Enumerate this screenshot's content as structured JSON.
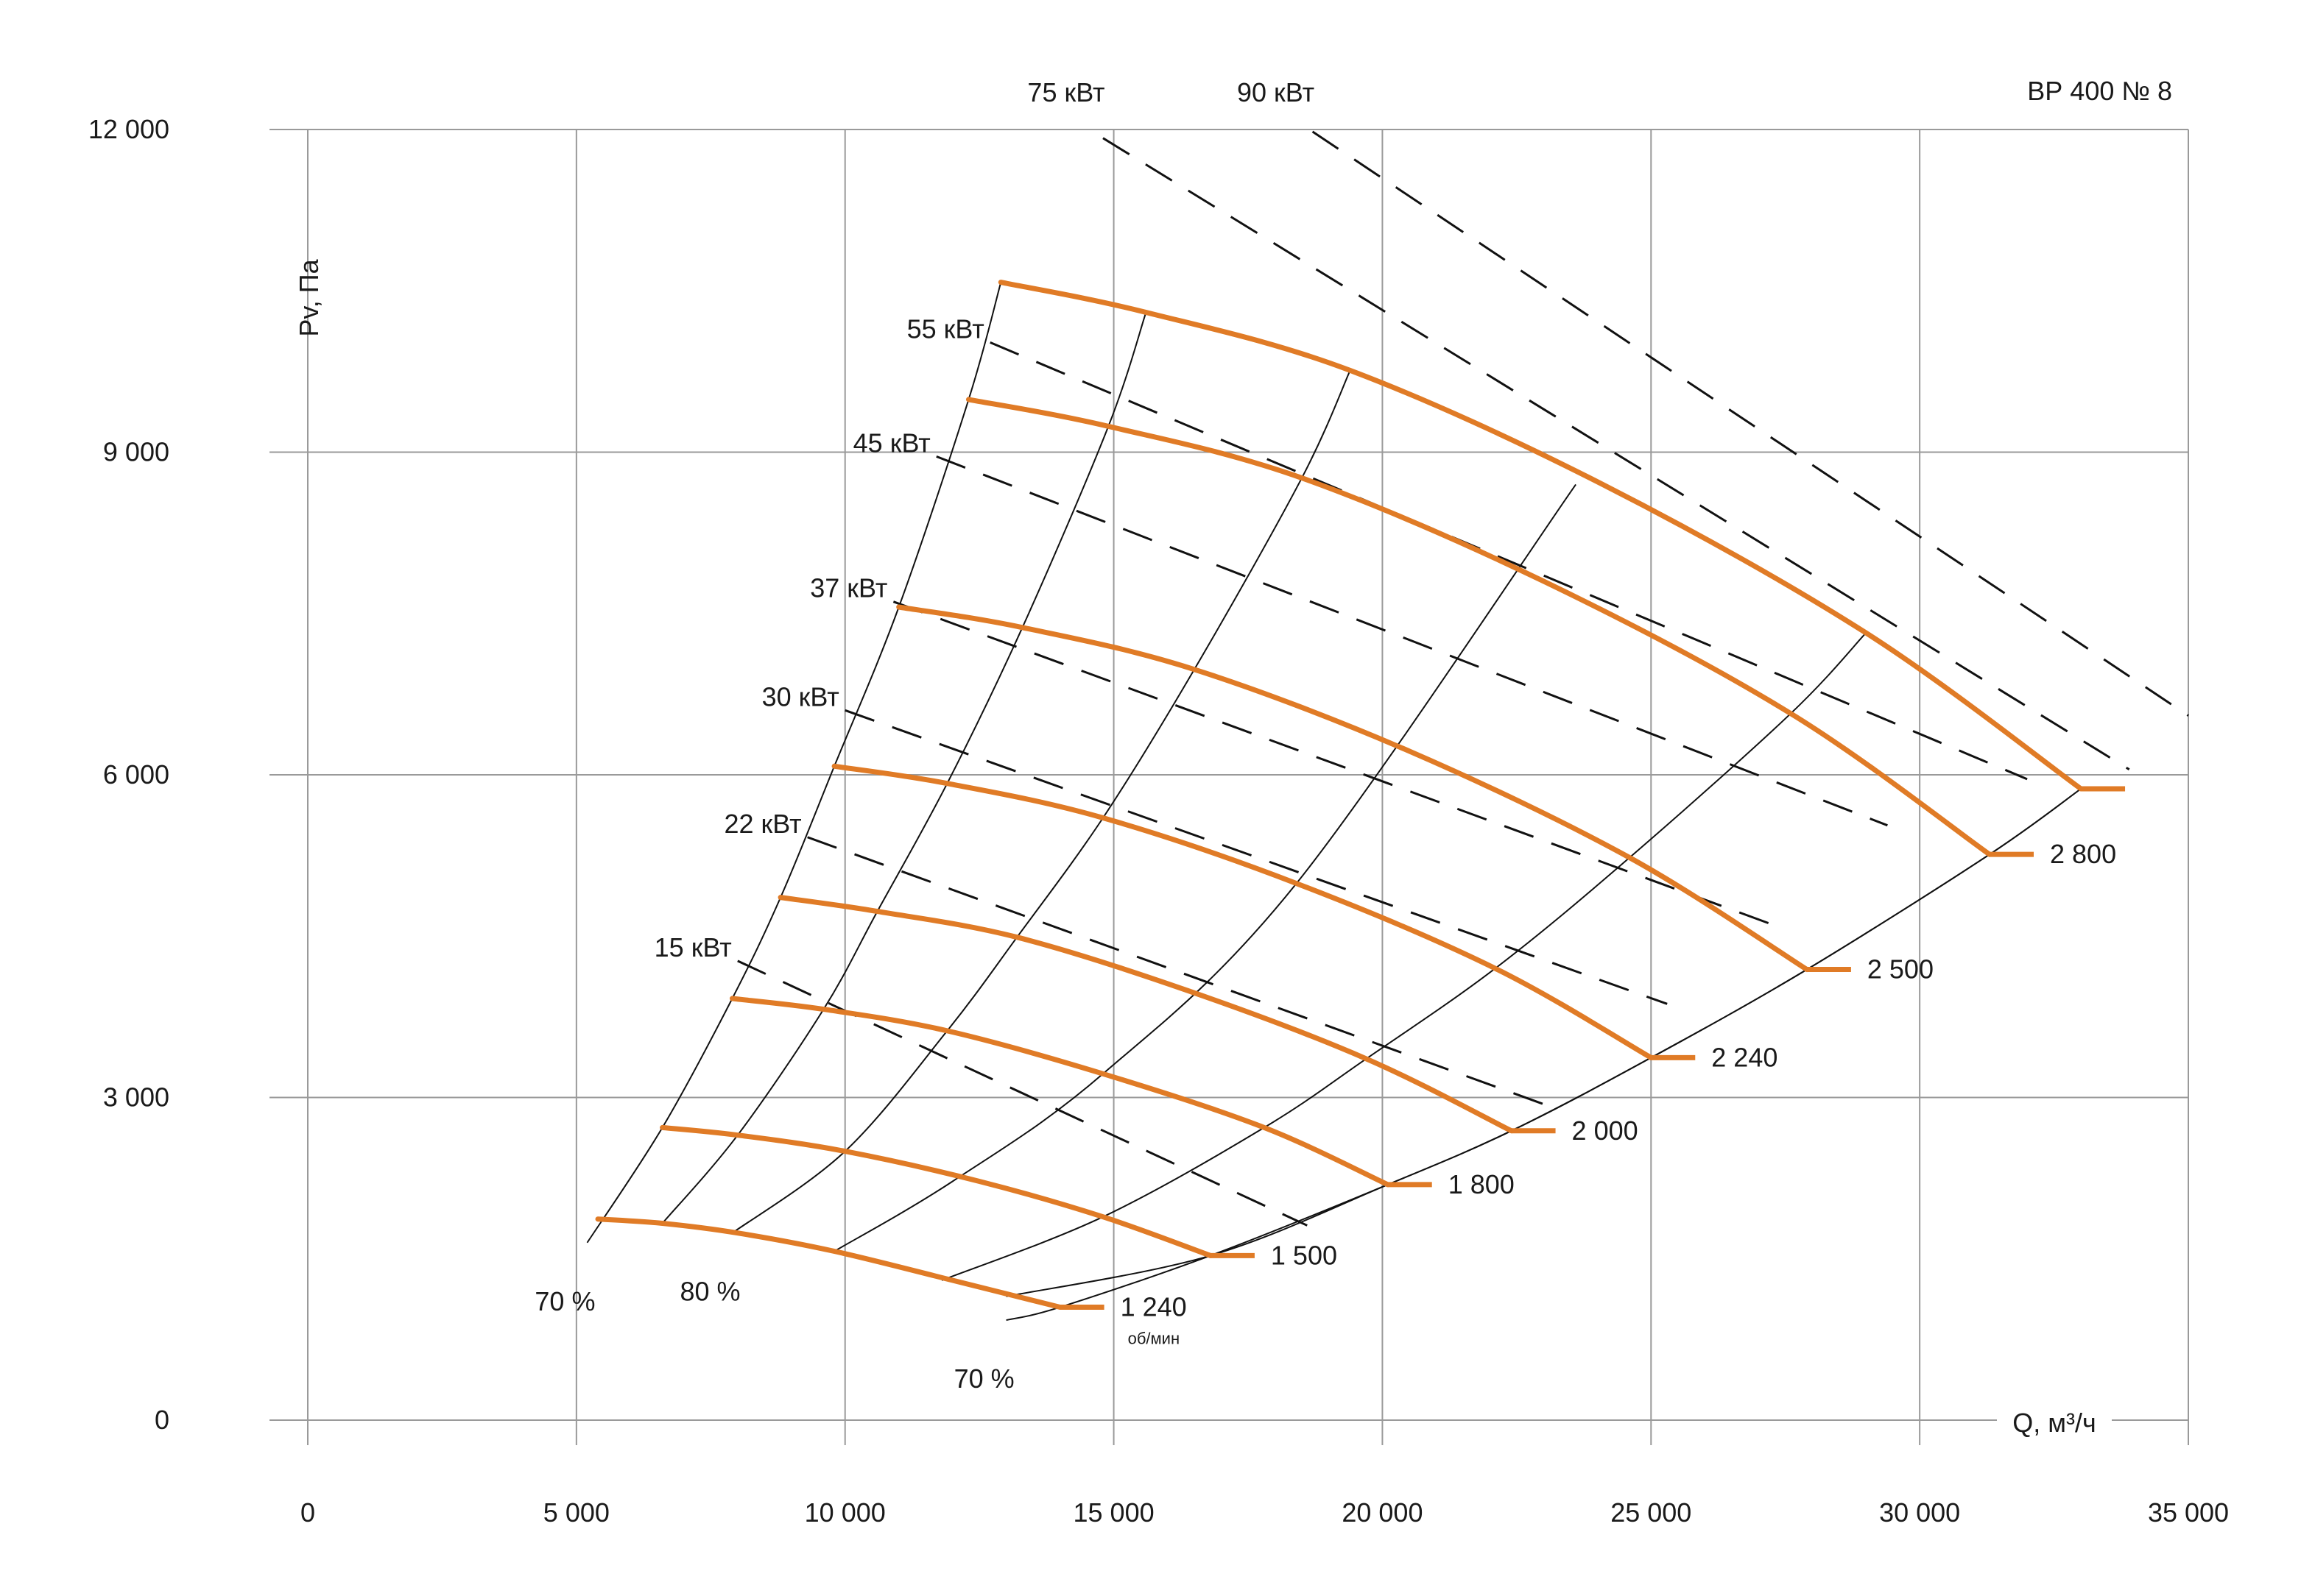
{
  "chart_data": {
    "type": "line",
    "title": "ВР 400 № 8",
    "xlabel": "Q, м³/ч",
    "ylabel": "Pv, Па",
    "xlim": [
      0,
      35000
    ],
    "ylim": [
      0,
      12000
    ],
    "x_ticks": [
      0,
      5000,
      10000,
      15000,
      20000,
      25000,
      30000,
      35000
    ],
    "x_tick_labels": [
      "0",
      "5 000",
      "10 000",
      "15 000",
      "20 000",
      "25 000",
      "30 000",
      "35 000"
    ],
    "y_ticks": [
      0,
      3000,
      6000,
      9000,
      12000
    ],
    "y_tick_labels": [
      "0",
      "3 000",
      "6 000",
      "9 000",
      "12 000"
    ],
    "grid": true,
    "colors": {
      "speed_curve": "#e07b26",
      "efficiency_line": "#111111",
      "power_line": "#111111",
      "grid": "#9a9a9a"
    },
    "speed_unit": "об/мин",
    "speed_curves": [
      {
        "name": "1 240",
        "x": [
          5400,
          6600,
          8000,
          9800,
          12000,
          14000
        ],
        "y": [
          1870,
          1830,
          1740,
          1570,
          1300,
          1050
        ]
      },
      {
        "name": "1 500",
        "x": [
          6600,
          8000,
          10000,
          12500,
          14800,
          16800
        ],
        "y": [
          2720,
          2650,
          2500,
          2220,
          1890,
          1530
        ]
      },
      {
        "name": "1 800",
        "x": [
          7900,
          9600,
          11900,
          14800,
          17800,
          20100
        ],
        "y": [
          3920,
          3820,
          3620,
          3220,
          2720,
          2190
        ]
      },
      {
        "name": "2 000",
        "x": [
          8800,
          10600,
          13200,
          16400,
          19700,
          22400
        ],
        "y": [
          4860,
          4730,
          4490,
          3990,
          3360,
          2690
        ]
      },
      {
        "name": "2 240",
        "x": [
          9800,
          11900,
          14800,
          18400,
          22100,
          25000
        ],
        "y": [
          6080,
          5920,
          5600,
          4990,
          4200,
          3370
        ]
      },
      {
        "name": "2 500",
        "x": [
          11000,
          13300,
          16500,
          20500,
          24600,
          27900
        ],
        "y": [
          7560,
          7370,
          6980,
          6220,
          5230,
          4190
        ]
      },
      {
        "name": "2 800",
        "x": [
          12300,
          14900,
          18500,
          23000,
          27600,
          31300
        ],
        "y": [
          9490,
          9240,
          8760,
          7800,
          6570,
          5260
        ]
      },
      {
        "name": "",
        "x": [
          12900,
          15600,
          19400,
          24100,
          29000,
          33000
        ],
        "y": [
          10580,
          10300,
          9760,
          8700,
          7320,
          5870
        ]
      }
    ],
    "efficiency_lines": [
      {
        "label": "70 %",
        "x": [
          5200,
          6600,
          7900,
          8800,
          9800,
          11000,
          12300,
          12900
        ],
        "y": [
          1650,
          2720,
          3920,
          4860,
          6080,
          7560,
          9490,
          10580
        ]
      },
      {
        "name": "",
        "x": [
          6600,
          8000,
          9600,
          10600,
          11900,
          13300,
          14900,
          15600
        ],
        "y": [
          1830,
          2650,
          3820,
          4730,
          5920,
          7370,
          9240,
          10300
        ]
      },
      {
        "label": "80 %",
        "x": [
          7900,
          10000,
          11900,
          13200,
          14800,
          16500,
          18500,
          19400
        ],
        "y": [
          1740,
          2500,
          3620,
          4490,
          5600,
          6980,
          8760,
          9760
        ]
      },
      {
        "name": "",
        "x": [
          11800,
          14800,
          17800,
          19700,
          22100,
          24600,
          27600,
          29000
        ],
        "y": [
          1300,
          1890,
          2720,
          3360,
          4200,
          5230,
          6570,
          7320
        ]
      },
      {
        "name": "",
        "x": [
          13000,
          16800,
          20100,
          22400,
          25000,
          27900,
          31300,
          33000
        ],
        "y": [
          1150,
          1530,
          2190,
          2690,
          3370,
          4190,
          5260,
          5870
        ]
      },
      {
        "label": "70 %",
        "x": [
          13000,
          14000,
          16800,
          20100,
          22400,
          25000,
          27900,
          31300,
          33000
        ],
        "y": [
          930,
          1050,
          1530,
          2190,
          2690,
          3370,
          4190,
          5260,
          5870
        ]
      },
      {
        "name": "",
        "x": [
          9800,
          12000,
          14800,
          18400,
          23600
        ],
        "y": [
          1570,
          2220,
          3220,
          4990,
          8700
        ]
      }
    ],
    "power_lines": [
      {
        "label": "15 кВт",
        "x": [
          8000,
          18600
        ],
        "y": [
          4270,
          1810
        ]
      },
      {
        "label": "22 кВт",
        "x": [
          9300,
          23100
        ],
        "y": [
          5420,
          2920
        ]
      },
      {
        "label": "30 кВт",
        "x": [
          10000,
          25300
        ],
        "y": [
          6600,
          3870
        ]
      },
      {
        "label": "37 кВт",
        "x": [
          10900,
          27300
        ],
        "y": [
          7610,
          4600
        ]
      },
      {
        "label": "45 кВт",
        "x": [
          11700,
          29400
        ],
        "y": [
          8960,
          5530
        ]
      },
      {
        "label": "55 кВт",
        "x": [
          12700,
          32000
        ],
        "y": [
          10020,
          5960
        ]
      },
      {
        "label": "75 кВт",
        "x": [
          14800,
          33900
        ],
        "y": [
          11920,
          6050
        ]
      },
      {
        "label": "90 кВт",
        "x": [
          18700,
          35000
        ],
        "y": [
          11980,
          6550
        ]
      }
    ]
  }
}
